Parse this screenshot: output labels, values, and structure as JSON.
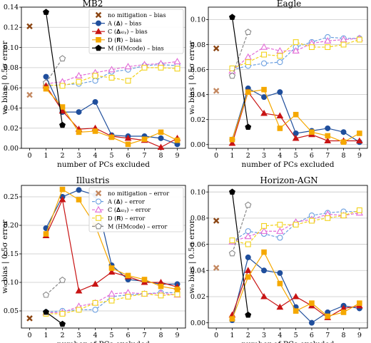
{
  "colors": {
    "no_mitigation": "#8b4513",
    "A": "#1f4e9c",
    "C": "#c81414",
    "D": "#f5a800",
    "M": "#000000",
    "A_light": "#6b9fe0",
    "C_light": "#e26ad6",
    "D_light": "#f2d21a",
    "M_light": "#888888",
    "nm_light": "#c48860"
  },
  "chart_data": [
    {
      "type": "line",
      "title": "MB2",
      "xlabel": "number of PCs excluded",
      "ylabel": "w₀ bias  |  0.5σ error",
      "x": [
        0,
        1,
        2,
        3,
        4,
        5,
        6,
        7,
        8,
        9
      ],
      "xlim": [
        -0.5,
        9.5
      ],
      "ylim": [
        0,
        0.14
      ],
      "yticks": [
        0.0,
        0.02,
        0.04,
        0.06,
        0.08,
        0.1,
        0.12,
        0.14
      ],
      "ytick_labels": [
        "0.00",
        "0.02",
        "0.04",
        "0.06",
        "0.08",
        "0.10",
        "0.12",
        "0.14"
      ],
      "grid": true,
      "series": [
        {
          "key": "nm",
          "kind": "bias",
          "x": [
            0
          ],
          "values": [
            0.121
          ]
        },
        {
          "key": "nm",
          "kind": "error",
          "x": [
            0
          ],
          "values": [
            0.053
          ]
        },
        {
          "key": "A",
          "kind": "bias",
          "x": [
            1,
            2,
            3,
            4,
            5,
            6,
            7,
            8,
            9
          ],
          "values": [
            0.071,
            0.036,
            0.036,
            0.046,
            0.013,
            0.012,
            0.012,
            0.01,
            0.004
          ]
        },
        {
          "key": "C",
          "kind": "bias",
          "x": [
            1,
            2,
            3,
            4,
            5,
            6,
            7,
            8,
            9
          ],
          "values": [
            0.062,
            0.037,
            0.019,
            0.02,
            0.012,
            0.01,
            0.008,
            0.001,
            0.01
          ]
        },
        {
          "key": "D",
          "kind": "bias",
          "x": [
            1,
            2,
            3,
            4,
            5,
            6,
            7,
            8,
            9
          ],
          "values": [
            0.059,
            0.041,
            0.016,
            0.017,
            0.011,
            0.004,
            0.009,
            0.016,
            0.008
          ]
        },
        {
          "key": "M",
          "kind": "bias",
          "x": [
            1,
            2
          ],
          "values": [
            0.135,
            0.023
          ]
        },
        {
          "key": "A",
          "kind": "error",
          "x": [
            1,
            2,
            3,
            4,
            5,
            6,
            7,
            8,
            9
          ],
          "values": [
            0.062,
            0.063,
            0.064,
            0.067,
            0.076,
            0.078,
            0.082,
            0.083,
            0.082
          ]
        },
        {
          "key": "C",
          "kind": "error",
          "x": [
            1,
            2,
            3,
            4,
            5,
            6,
            7,
            8,
            9
          ],
          "values": [
            0.064,
            0.066,
            0.072,
            0.075,
            0.078,
            0.081,
            0.083,
            0.084,
            0.086
          ]
        },
        {
          "key": "D",
          "kind": "error",
          "x": [
            1,
            2,
            3,
            4,
            5,
            6,
            7,
            8,
            9
          ],
          "values": [
            0.063,
            0.062,
            0.066,
            0.072,
            0.07,
            0.067,
            0.08,
            0.08,
            0.079
          ]
        },
        {
          "key": "M",
          "kind": "error",
          "x": [
            1,
            2
          ],
          "values": [
            0.065,
            0.089
          ]
        }
      ],
      "legend": {
        "placement": "top-right",
        "kind": "bias",
        "entries": [
          {
            "key": "nm",
            "label": "no mitigation – bias"
          },
          {
            "key": "A",
            "label": "A (𝚫)            – bias"
          },
          {
            "key": "C",
            "label": "C (𝚫ₖₗᵧ)       – bias"
          },
          {
            "key": "D",
            "label": "D (𝐑)             – bias"
          },
          {
            "key": "M",
            "label": "M (HMcode) – bias"
          }
        ]
      }
    },
    {
      "type": "line",
      "title": "Eagle",
      "xlabel": "number of PCs excluded",
      "ylabel": "w₀ bias  |  0.5σ error",
      "x": [
        0,
        1,
        2,
        3,
        4,
        5,
        6,
        7,
        8,
        9
      ],
      "xlim": [
        -0.5,
        9.5
      ],
      "ylim": [
        -0.003,
        0.11
      ],
      "yticks": [
        0.0,
        0.02,
        0.04,
        0.06,
        0.08,
        0.1
      ],
      "ytick_labels": [
        "0.00",
        "0.02",
        "0.04",
        "0.06",
        "0.08",
        "0.10"
      ],
      "grid": true,
      "series": [
        {
          "key": "nm",
          "kind": "bias",
          "x": [
            0
          ],
          "values": [
            0.077
          ]
        },
        {
          "key": "nm",
          "kind": "error",
          "x": [
            0
          ],
          "values": [
            0.043
          ]
        },
        {
          "key": "A",
          "kind": "bias",
          "x": [
            1,
            2,
            3,
            4,
            5,
            6,
            7,
            8,
            9
          ],
          "values": [
            0.004,
            0.045,
            0.038,
            0.042,
            0.009,
            0.011,
            0.013,
            0.01,
            0.002
          ]
        },
        {
          "key": "C",
          "kind": "bias",
          "x": [
            1,
            2,
            3,
            4,
            5,
            6,
            7,
            8,
            9
          ],
          "values": [
            0.001,
            0.042,
            0.025,
            0.023,
            0.005,
            0.008,
            0.003,
            0.003,
            0.003
          ]
        },
        {
          "key": "D",
          "kind": "bias",
          "x": [
            1,
            2,
            3,
            4,
            5,
            6,
            7,
            8,
            9
          ],
          "values": [
            0.004,
            0.042,
            0.044,
            0.013,
            0.024,
            0.01,
            0.007,
            0.002,
            0.009
          ]
        },
        {
          "key": "M",
          "kind": "bias",
          "x": [
            1,
            2
          ],
          "values": [
            0.102,
            0.014
          ]
        },
        {
          "key": "A",
          "kind": "error",
          "x": [
            1,
            2,
            3,
            4,
            5,
            6,
            7,
            8,
            9
          ],
          "values": [
            0.06,
            0.063,
            0.065,
            0.066,
            0.078,
            0.082,
            0.086,
            0.085,
            0.085
          ]
        },
        {
          "key": "C",
          "kind": "error",
          "x": [
            1,
            2,
            3,
            4,
            5,
            6,
            7,
            8,
            9
          ],
          "values": [
            0.059,
            0.07,
            0.078,
            0.075,
            0.075,
            0.081,
            0.083,
            0.084,
            0.085
          ]
        },
        {
          "key": "D",
          "kind": "error",
          "x": [
            1,
            2,
            3,
            4,
            5,
            6,
            7,
            8,
            9
          ],
          "values": [
            0.061,
            0.066,
            0.072,
            0.071,
            0.082,
            0.078,
            0.078,
            0.08,
            0.084
          ]
        },
        {
          "key": "M",
          "kind": "error",
          "x": [
            1,
            2
          ],
          "values": [
            0.055,
            0.09
          ]
        }
      ]
    },
    {
      "type": "line",
      "title": "Illustris",
      "xlabel": "number of PCs excluded",
      "ylabel": "w₀ bias  |  0.5σ error",
      "x": [
        0,
        1,
        2,
        3,
        4,
        5,
        6,
        7,
        8,
        9
      ],
      "xlim": [
        -0.5,
        9.5
      ],
      "ylim": [
        0.02,
        0.27
      ],
      "yticks": [
        0.05,
        0.1,
        0.15,
        0.2,
        0.25
      ],
      "ytick_labels": [
        "0.05",
        "0.10",
        "0.15",
        "0.20",
        "0.25"
      ],
      "grid": true,
      "series": [
        {
          "key": "nm",
          "kind": "bias",
          "x": [
            0
          ],
          "values": [
            0.037
          ]
        },
        {
          "key": "nm",
          "kind": "error",
          "x": [
            0
          ],
          "values": [
            0.037
          ]
        },
        {
          "key": "A",
          "kind": "bias",
          "x": [
            1,
            2,
            3,
            4,
            5,
            6,
            7,
            8,
            9
          ],
          "values": [
            0.195,
            0.25,
            0.262,
            0.253,
            0.13,
            0.105,
            0.102,
            0.097,
            0.097
          ]
        },
        {
          "key": "C",
          "kind": "bias",
          "x": [
            1,
            2,
            3,
            4,
            5,
            6,
            7,
            8,
            9
          ],
          "values": [
            0.182,
            0.245,
            0.085,
            0.097,
            0.118,
            0.11,
            0.1,
            0.1,
            0.092
          ]
        },
        {
          "key": "D",
          "kind": "bias",
          "x": [
            1,
            2,
            3,
            4,
            5,
            6,
            7,
            8,
            9
          ],
          "values": [
            0.185,
            0.263,
            0.245,
            0.2,
            0.125,
            0.112,
            0.105,
            0.093,
            0.088
          ]
        },
        {
          "key": "M",
          "kind": "bias",
          "x": [
            1,
            2
          ],
          "values": [
            0.048,
            0.027
          ]
        },
        {
          "key": "A",
          "kind": "error",
          "x": [
            1,
            2,
            3,
            4,
            5,
            6,
            7,
            8,
            9
          ],
          "values": [
            0.048,
            0.05,
            0.052,
            0.052,
            0.075,
            0.078,
            0.08,
            0.082,
            0.082
          ]
        },
        {
          "key": "C",
          "kind": "error",
          "x": [
            1,
            2,
            3,
            4,
            5,
            6,
            7,
            8,
            9
          ],
          "values": [
            0.047,
            0.047,
            0.058,
            0.064,
            0.08,
            0.082,
            0.08,
            0.081,
            0.078
          ]
        },
        {
          "key": "D",
          "kind": "error",
          "x": [
            1,
            2,
            3,
            4,
            5,
            6,
            7,
            8,
            9
          ],
          "values": [
            0.045,
            0.045,
            0.052,
            0.064,
            0.068,
            0.075,
            0.08,
            0.077,
            0.079
          ]
        },
        {
          "key": "M",
          "kind": "error",
          "x": [
            1,
            2
          ],
          "values": [
            0.078,
            0.104
          ]
        }
      ],
      "legend": {
        "placement": "top-right",
        "kind": "error",
        "entries": [
          {
            "key": "nm",
            "label": "no mitigation – error"
          },
          {
            "key": "A",
            "label": "A (𝚫)            – error"
          },
          {
            "key": "C",
            "label": "C (𝚫ₖₗᵧ)       – error"
          },
          {
            "key": "D",
            "label": "D (𝐑)             – error"
          },
          {
            "key": "M",
            "label": "M (HMcode) – error"
          }
        ]
      }
    },
    {
      "type": "line",
      "title": "Horizon-AGN",
      "xlabel": "number of PCs excluded",
      "ylabel": "w₀ bias  |  0.5σ error",
      "x": [
        0,
        1,
        2,
        3,
        4,
        5,
        6,
        7,
        8,
        9
      ],
      "xlim": [
        -0.5,
        9.5
      ],
      "ylim": [
        -0.004,
        0.105
      ],
      "yticks": [
        0.0,
        0.02,
        0.04,
        0.06,
        0.08,
        0.1
      ],
      "ytick_labels": [
        "0.00",
        "0.02",
        "0.04",
        "0.06",
        "0.08",
        "0.10"
      ],
      "grid": true,
      "series": [
        {
          "key": "nm",
          "kind": "bias",
          "x": [
            0
          ],
          "values": [
            0.078
          ]
        },
        {
          "key": "nm",
          "kind": "error",
          "x": [
            0
          ],
          "values": [
            0.042
          ]
        },
        {
          "key": "A",
          "kind": "bias",
          "x": [
            1,
            2,
            3,
            4,
            5,
            6,
            7,
            8,
            9
          ],
          "values": [
            0.002,
            0.05,
            0.04,
            0.038,
            0.012,
            0.0,
            0.008,
            0.013,
            0.011
          ]
        },
        {
          "key": "C",
          "kind": "bias",
          "x": [
            1,
            2,
            3,
            4,
            5,
            6,
            7,
            8,
            9
          ],
          "values": [
            0.006,
            0.04,
            0.02,
            0.012,
            0.02,
            0.013,
            0.004,
            0.011,
            0.013
          ]
        },
        {
          "key": "D",
          "kind": "bias",
          "x": [
            1,
            2,
            3,
            4,
            5,
            6,
            7,
            8,
            9
          ],
          "values": [
            0.003,
            0.035,
            0.054,
            0.03,
            0.009,
            0.015,
            0.005,
            0.008,
            0.015
          ]
        },
        {
          "key": "M",
          "kind": "bias",
          "x": [
            1,
            2
          ],
          "values": [
            0.1,
            0.006
          ]
        },
        {
          "key": "A",
          "kind": "error",
          "x": [
            1,
            2,
            3,
            4,
            5,
            6,
            7,
            8,
            9
          ],
          "values": [
            0.062,
            0.07,
            0.068,
            0.065,
            0.076,
            0.082,
            0.084,
            0.085,
            0.085
          ]
        },
        {
          "key": "C",
          "kind": "error",
          "x": [
            1,
            2,
            3,
            4,
            5,
            6,
            7,
            8,
            9
          ],
          "values": [
            0.062,
            0.066,
            0.07,
            0.07,
            0.077,
            0.079,
            0.083,
            0.082,
            0.084
          ]
        },
        {
          "key": "D",
          "kind": "error",
          "x": [
            1,
            2,
            3,
            4,
            5,
            6,
            7,
            8,
            9
          ],
          "values": [
            0.063,
            0.06,
            0.074,
            0.075,
            0.075,
            0.078,
            0.08,
            0.082,
            0.086
          ]
        },
        {
          "key": "M",
          "kind": "error",
          "x": [
            1,
            2
          ],
          "values": [
            0.053,
            0.09
          ]
        }
      ]
    }
  ]
}
